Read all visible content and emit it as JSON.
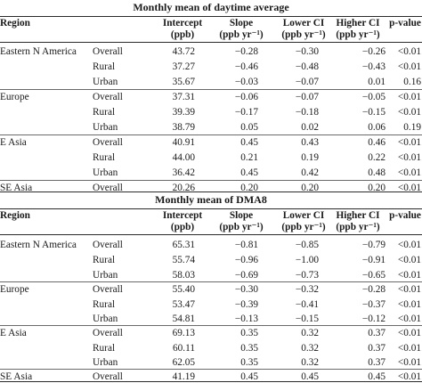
{
  "tables": [
    {
      "title": "Monthly mean of daytime average",
      "columns": {
        "region": "Region",
        "intercept": [
          "Intercept",
          "(ppb)"
        ],
        "slope": [
          "Slope",
          "(ppb yr⁻¹)"
        ],
        "lower_ci": [
          "Lower CI",
          "(ppb yr⁻¹)"
        ],
        "higher_ci": [
          "Higher CI",
          "(ppb yr⁻¹)"
        ],
        "p_value": [
          "p-value"
        ]
      },
      "regions": [
        {
          "name": "Eastern N America",
          "rows": [
            {
              "group": "Overall",
              "values": [
                "43.72",
                "−0.28",
                "−0.30",
                "−0.26",
                "<0.01"
              ]
            },
            {
              "group": "Rural",
              "values": [
                "37.27",
                "−0.46",
                "−0.48",
                "−0.43",
                "<0.01"
              ]
            },
            {
              "group": "Urban",
              "values": [
                "35.67",
                "−0.03",
                "−0.07",
                "0.01",
                "0.16"
              ]
            }
          ]
        },
        {
          "name": "Europe",
          "rows": [
            {
              "group": "Overall",
              "values": [
                "37.31",
                "−0.06",
                "−0.07",
                "−0.05",
                "<0.01"
              ]
            },
            {
              "group": "Rural",
              "values": [
                "39.39",
                "−0.17",
                "−0.18",
                "−0.15",
                "<0.01"
              ]
            },
            {
              "group": "Urban",
              "values": [
                "38.79",
                "0.05",
                "0.02",
                "0.06",
                "0.19"
              ]
            }
          ]
        },
        {
          "name": "E Asia",
          "rows": [
            {
              "group": "Overall",
              "values": [
                "40.91",
                "0.45",
                "0.43",
                "0.46",
                "<0.01"
              ]
            },
            {
              "group": "Rural",
              "values": [
                "44.00",
                "0.21",
                "0.19",
                "0.22",
                "<0.01"
              ]
            },
            {
              "group": "Urban",
              "values": [
                "36.42",
                "0.45",
                "0.42",
                "0.48",
                "<0.01"
              ]
            }
          ]
        },
        {
          "name": "SE Asia",
          "rows": [
            {
              "group": "Overall",
              "values": [
                "20.26",
                "0.20",
                "0.20",
                "0.20",
                "<0.01"
              ]
            }
          ]
        }
      ]
    },
    {
      "title": "Monthly mean of DMA8",
      "columns": {
        "region": "Region",
        "intercept": [
          "Intercept",
          "(ppb)"
        ],
        "slope": [
          "Slope",
          "(ppb yr⁻¹)"
        ],
        "lower_ci": [
          "Lower CI",
          "(ppb yr⁻¹)"
        ],
        "higher_ci": [
          "Higher CI",
          "(ppb yr⁻¹)"
        ],
        "p_value": [
          "p-value"
        ]
      },
      "regions": [
        {
          "name": "Eastern N America",
          "rows": [
            {
              "group": "Overall",
              "values": [
                "65.31",
                "−0.81",
                "−0.85",
                "−0.79",
                "<0.01"
              ]
            },
            {
              "group": "Rural",
              "values": [
                "55.74",
                "−0.96",
                "−1.00",
                "−0.91",
                "<0.01"
              ]
            },
            {
              "group": "Urban",
              "values": [
                "58.03",
                "−0.69",
                "−0.73",
                "−0.65",
                "<0.01"
              ]
            }
          ]
        },
        {
          "name": "Europe",
          "rows": [
            {
              "group": "Overall",
              "values": [
                "55.40",
                "−0.30",
                "−0.32",
                "−0.28",
                "<0.01"
              ]
            },
            {
              "group": "Rural",
              "values": [
                "53.47",
                "−0.39",
                "−0.41",
                "−0.37",
                "<0.01"
              ]
            },
            {
              "group": "Urban",
              "values": [
                "54.81",
                "−0.13",
                "−0.15",
                "−0.12",
                "<0.01"
              ]
            }
          ]
        },
        {
          "name": "E Asia",
          "rows": [
            {
              "group": "Overall",
              "values": [
                "69.13",
                "0.35",
                "0.32",
                "0.37",
                "<0.01"
              ]
            },
            {
              "group": "Rural",
              "values": [
                "60.11",
                "0.35",
                "0.32",
                "0.37",
                "<0.01"
              ]
            },
            {
              "group": "Urban",
              "values": [
                "62.05",
                "0.35",
                "0.32",
                "0.37",
                "<0.01"
              ]
            }
          ]
        },
        {
          "name": "SE Asia",
          "rows": [
            {
              "group": "Overall",
              "values": [
                "41.19",
                "0.45",
                "0.45",
                "0.45",
                "<0.01"
              ]
            }
          ]
        }
      ]
    }
  ]
}
